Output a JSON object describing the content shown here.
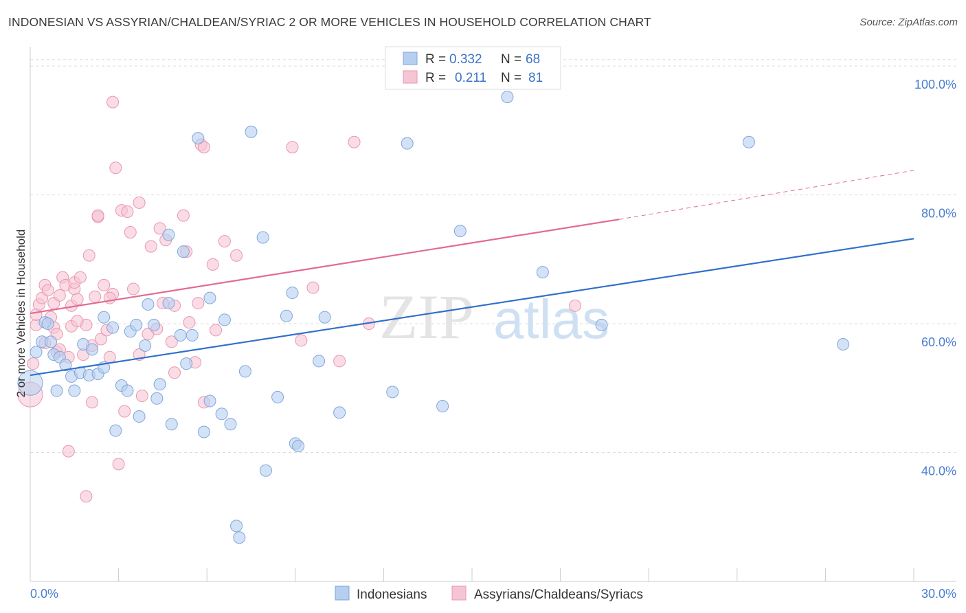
{
  "title": "INDONESIAN VS ASSYRIAN/CHALDEAN/SYRIAC 2 OR MORE VEHICLES IN HOUSEHOLD CORRELATION CHART",
  "source": "Source: ZipAtlas.com",
  "watermark": {
    "zip": "ZIP",
    "atlas": "atlas"
  },
  "colors": {
    "blue_fill": "#b6cff0",
    "blue_stroke": "#7fa6dc",
    "blue_line": "#2f6fcc",
    "pink_fill": "#f6c5d4",
    "pink_stroke": "#e996b1",
    "pink_line": "#e36a93",
    "grid": "#dddddd",
    "tick_text": "#4a7fd0"
  },
  "legend": {
    "r_label": "R =",
    "n_label": "N =",
    "entries": [
      {
        "r": "0.332",
        "n": "68"
      },
      {
        "r": "0.211",
        "n": "81"
      }
    ]
  },
  "chart_data": {
    "type": "scatter",
    "title": "INDONESIAN VS ASSYRIAN/CHALDEAN/SYRIAC 2 OR MORE VEHICLES IN HOUSEHOLD CORRELATION CHART",
    "xlabel": "",
    "ylabel": "2 or more Vehicles in Household",
    "xlim": [
      0,
      30
    ],
    "ylim": [
      20,
      103
    ],
    "x_tick_labels": [
      "0.0%",
      "30.0%"
    ],
    "y_ticks": [
      40,
      60,
      80,
      100
    ],
    "y_tick_labels": [
      "40.0%",
      "60.0%",
      "80.0%",
      "100.0%"
    ],
    "grid": true,
    "series": [
      {
        "name": "Indonesians",
        "color": "blue",
        "r": 0.332,
        "n": 68,
        "trend": {
          "x0": 0,
          "y0": 52.0,
          "x1": 30,
          "y1": 73.2
        },
        "points": [
          [
            0.0,
            50.8
          ],
          [
            0.2,
            55.6
          ],
          [
            0.4,
            57.2
          ],
          [
            0.5,
            60.2
          ],
          [
            0.7,
            57.2
          ],
          [
            0.8,
            55.2
          ],
          [
            1.0,
            54.8
          ],
          [
            1.2,
            53.6
          ],
          [
            0.9,
            49.6
          ],
          [
            1.4,
            51.8
          ],
          [
            1.5,
            49.6
          ],
          [
            1.7,
            52.4
          ],
          [
            1.8,
            56.8
          ],
          [
            2.0,
            52.0
          ],
          [
            2.1,
            56.0
          ],
          [
            2.3,
            52.2
          ],
          [
            2.5,
            53.2
          ],
          [
            2.5,
            61.0
          ],
          [
            2.8,
            59.4
          ],
          [
            2.9,
            43.4
          ],
          [
            3.1,
            50.4
          ],
          [
            3.3,
            49.6
          ],
          [
            3.4,
            58.8
          ],
          [
            3.6,
            59.8
          ],
          [
            3.7,
            45.6
          ],
          [
            3.9,
            56.6
          ],
          [
            4.0,
            63.0
          ],
          [
            4.2,
            59.8
          ],
          [
            4.3,
            48.4
          ],
          [
            4.4,
            50.6
          ],
          [
            4.7,
            73.8
          ],
          [
            4.7,
            63.2
          ],
          [
            4.8,
            44.4
          ],
          [
            5.1,
            58.2
          ],
          [
            5.2,
            71.2
          ],
          [
            5.3,
            53.8
          ],
          [
            5.5,
            58.2
          ],
          [
            5.7,
            88.8
          ],
          [
            5.9,
            43.2
          ],
          [
            6.1,
            64.0
          ],
          [
            6.1,
            48.0
          ],
          [
            6.5,
            46.0
          ],
          [
            6.6,
            60.6
          ],
          [
            6.8,
            44.4
          ],
          [
            7.0,
            28.6
          ],
          [
            7.1,
            26.8
          ],
          [
            7.3,
            52.6
          ],
          [
            7.5,
            89.8
          ],
          [
            7.9,
            73.4
          ],
          [
            8.0,
            37.2
          ],
          [
            8.4,
            48.6
          ],
          [
            8.7,
            61.2
          ],
          [
            8.9,
            64.8
          ],
          [
            9.0,
            41.4
          ],
          [
            9.1,
            41.0
          ],
          [
            9.8,
            54.2
          ],
          [
            10.0,
            61.0
          ],
          [
            10.5,
            46.2
          ],
          [
            12.3,
            49.4
          ],
          [
            12.8,
            88.0
          ],
          [
            14.0,
            47.2
          ],
          [
            14.6,
            74.4
          ],
          [
            16.2,
            95.2
          ],
          [
            17.4,
            68.0
          ],
          [
            19.4,
            59.8
          ],
          [
            24.4,
            88.2
          ],
          [
            27.6,
            56.8
          ],
          [
            0.6,
            60.0
          ]
        ]
      },
      {
        "name": "Assyrians/Chaldeans/Syriacs",
        "color": "pink",
        "r": 0.211,
        "n": 81,
        "trend": {
          "x0": 0,
          "y0": 61.6,
          "x1": 20.0,
          "y1": 76.2,
          "dash_x1": 30,
          "dash_y1": 83.8
        },
        "points": [
          [
            0.0,
            49.0
          ],
          [
            0.1,
            53.8
          ],
          [
            0.2,
            59.8
          ],
          [
            0.2,
            61.4
          ],
          [
            0.3,
            63.0
          ],
          [
            0.4,
            64.0
          ],
          [
            0.5,
            66.0
          ],
          [
            0.5,
            57.0
          ],
          [
            0.6,
            65.2
          ],
          [
            0.7,
            61.0
          ],
          [
            0.8,
            63.2
          ],
          [
            0.8,
            59.4
          ],
          [
            0.9,
            55.6
          ],
          [
            1.0,
            64.4
          ],
          [
            1.0,
            56.0
          ],
          [
            1.1,
            67.2
          ],
          [
            1.2,
            66.0
          ],
          [
            1.3,
            54.8
          ],
          [
            1.4,
            59.6
          ],
          [
            1.4,
            62.8
          ],
          [
            1.5,
            65.4
          ],
          [
            1.5,
            66.4
          ],
          [
            1.6,
            63.8
          ],
          [
            1.7,
            67.2
          ],
          [
            1.8,
            55.2
          ],
          [
            1.9,
            59.8
          ],
          [
            1.9,
            33.2
          ],
          [
            2.0,
            70.6
          ],
          [
            2.1,
            56.6
          ],
          [
            2.2,
            64.2
          ],
          [
            2.3,
            76.6
          ],
          [
            2.3,
            76.8
          ],
          [
            2.4,
            57.6
          ],
          [
            2.5,
            66.0
          ],
          [
            2.6,
            59.0
          ],
          [
            2.7,
            54.8
          ],
          [
            2.8,
            64.6
          ],
          [
            2.8,
            94.4
          ],
          [
            2.9,
            84.2
          ],
          [
            3.0,
            38.2
          ],
          [
            3.1,
            77.6
          ],
          [
            3.2,
            46.4
          ],
          [
            3.3,
            77.4
          ],
          [
            3.4,
            74.2
          ],
          [
            3.5,
            65.4
          ],
          [
            3.7,
            78.8
          ],
          [
            3.8,
            48.8
          ],
          [
            4.0,
            58.4
          ],
          [
            4.1,
            72.0
          ],
          [
            4.3,
            59.2
          ],
          [
            4.4,
            74.8
          ],
          [
            4.5,
            63.2
          ],
          [
            4.6,
            73.0
          ],
          [
            4.8,
            57.2
          ],
          [
            4.9,
            62.8
          ],
          [
            5.2,
            76.8
          ],
          [
            5.3,
            71.2
          ],
          [
            5.4,
            60.2
          ],
          [
            5.6,
            54.0
          ],
          [
            5.7,
            63.2
          ],
          [
            5.8,
            87.8
          ],
          [
            5.9,
            47.8
          ],
          [
            5.9,
            87.4
          ],
          [
            6.2,
            69.2
          ],
          [
            6.3,
            59.0
          ],
          [
            6.6,
            72.8
          ],
          [
            7.0,
            70.6
          ],
          [
            8.9,
            87.4
          ],
          [
            9.2,
            57.4
          ],
          [
            9.6,
            65.6
          ],
          [
            10.5,
            54.2
          ],
          [
            11.0,
            88.2
          ],
          [
            11.5,
            60.0
          ],
          [
            18.5,
            62.8
          ],
          [
            1.3,
            40.2
          ],
          [
            2.1,
            47.8
          ],
          [
            0.9,
            58.4
          ],
          [
            3.7,
            55.2
          ],
          [
            1.6,
            60.4
          ],
          [
            4.9,
            52.4
          ],
          [
            2.7,
            64.0
          ]
        ]
      }
    ]
  },
  "bottom_legend": [
    {
      "label": "Indonesians"
    },
    {
      "label": "Assyrians/Chaldeans/Syriacs"
    }
  ]
}
